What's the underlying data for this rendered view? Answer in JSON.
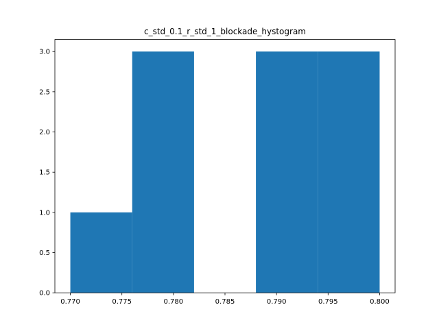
{
  "chart_data": {
    "type": "bar",
    "title": "c_std_0.1_r_std_1_blockade_hystogram",
    "xlabel": "",
    "ylabel": "",
    "bins": [
      {
        "x0": 0.77,
        "x1": 0.776,
        "count": 1
      },
      {
        "x0": 0.776,
        "x1": 0.782,
        "count": 3
      },
      {
        "x0": 0.782,
        "x1": 0.788,
        "count": 0
      },
      {
        "x0": 0.788,
        "x1": 0.794,
        "count": 3
      },
      {
        "x0": 0.794,
        "x1": 0.8,
        "count": 3
      }
    ],
    "xlim": [
      0.7685,
      0.8015
    ],
    "ylim": [
      0,
      3.15
    ],
    "xticks": [
      0.77,
      0.775,
      0.78,
      0.785,
      0.79,
      0.795,
      0.8
    ],
    "xtick_labels": [
      "0.770",
      "0.775",
      "0.780",
      "0.785",
      "0.790",
      "0.795",
      "0.800"
    ],
    "yticks": [
      0.0,
      0.5,
      1.0,
      1.5,
      2.0,
      2.5,
      3.0
    ],
    "ytick_labels": [
      "0.0",
      "0.5",
      "1.0",
      "1.5",
      "2.0",
      "2.5",
      "3.0"
    ],
    "bar_color": "#1f77b4",
    "grid": false
  }
}
